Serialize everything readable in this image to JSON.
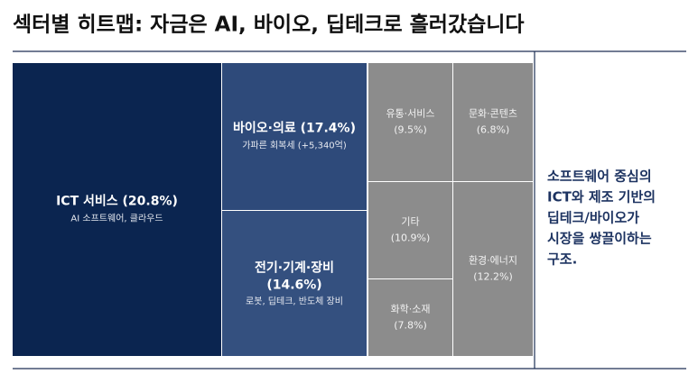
{
  "chart_data": {
    "type": "treemap",
    "title": "섹터별 히트맵: 자금은 AI, 바이오, 딥테크로 흘러갔습니다",
    "categories": [
      "ICT 서비스",
      "바이오·의료",
      "전기·기계·장비",
      "유통·서비스",
      "문화·콘텐츠",
      "기타",
      "화학·소재",
      "환경·에너지"
    ],
    "values": [
      20.8,
      17.4,
      14.6,
      9.5,
      6.8,
      10.9,
      7.8,
      12.2
    ],
    "value_labels": [
      "(20.8%)",
      "(17.4%)",
      "(14.6%)",
      "(9.5%)",
      "(6.8%)",
      "(10.9%)",
      "(7.8%)",
      "(12.2%)"
    ],
    "notes": [
      "AI 소프트웨어, 클라우드",
      "가파른 회복세 (+5,340억)",
      "로봇, 딥테크, 반도체 장비",
      null,
      null,
      null,
      null,
      null
    ],
    "colors": [
      "#0b2550",
      "#2e4a7a",
      "#34507f",
      "#8c8c8c",
      "#8c8c8c",
      "#8c8c8c",
      "#8c8c8c",
      "#8c8c8c"
    ],
    "annotation": [
      "소프트웨어 중심의",
      "ICT와 제조 기반의",
      "딥테크/바이오가",
      "시장을 쌍끌이하는",
      "구조."
    ]
  }
}
